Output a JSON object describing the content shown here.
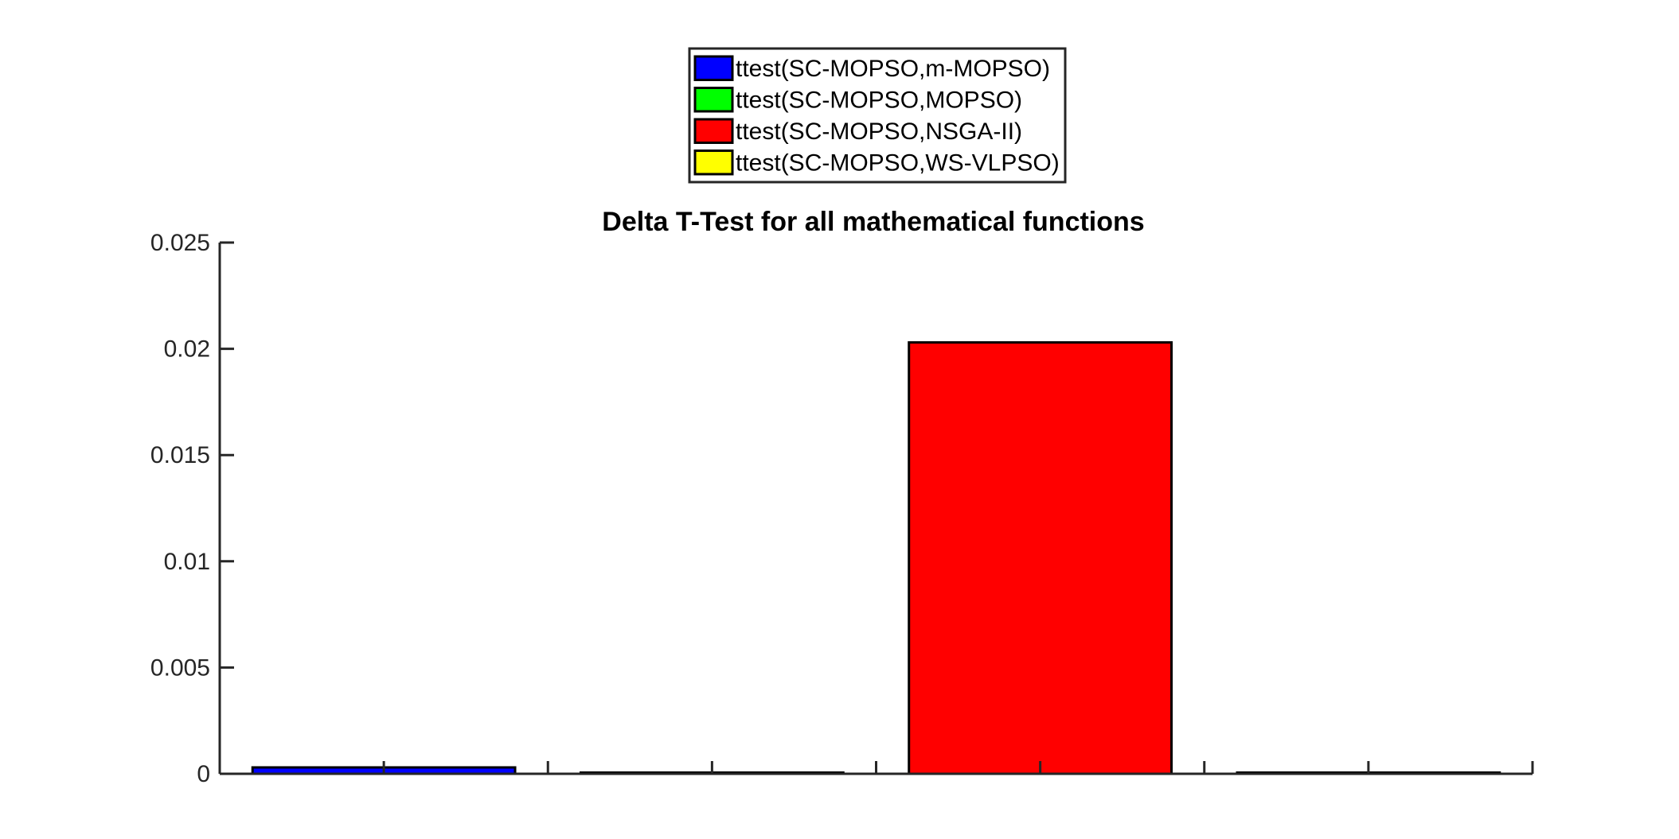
{
  "chart_data": {
    "type": "bar",
    "title": "Delta T-Test for all mathematical functions",
    "xlabel": "",
    "ylabel": "",
    "ylim": [
      0,
      0.025
    ],
    "yticks": [
      "0",
      "0.005",
      "0.01",
      "0.015",
      "0.02",
      "0.025"
    ],
    "legend_position": "top-center (outside)",
    "series": [
      {
        "name": "ttest(SC-MOPSO,m-MOPSO)",
        "value": 0.0003,
        "color": "#0000ff"
      },
      {
        "name": "ttest(SC-MOPSO,MOPSO)",
        "value": 5e-05,
        "color": "#00ff00"
      },
      {
        "name": "ttest(SC-MOPSO,NSGA-II)",
        "value": 0.0203,
        "color": "#ff0000"
      },
      {
        "name": "ttest(SC-MOPSO,WS-VLPSO)",
        "value": 1e-05,
        "color": "#ffff00"
      }
    ]
  }
}
